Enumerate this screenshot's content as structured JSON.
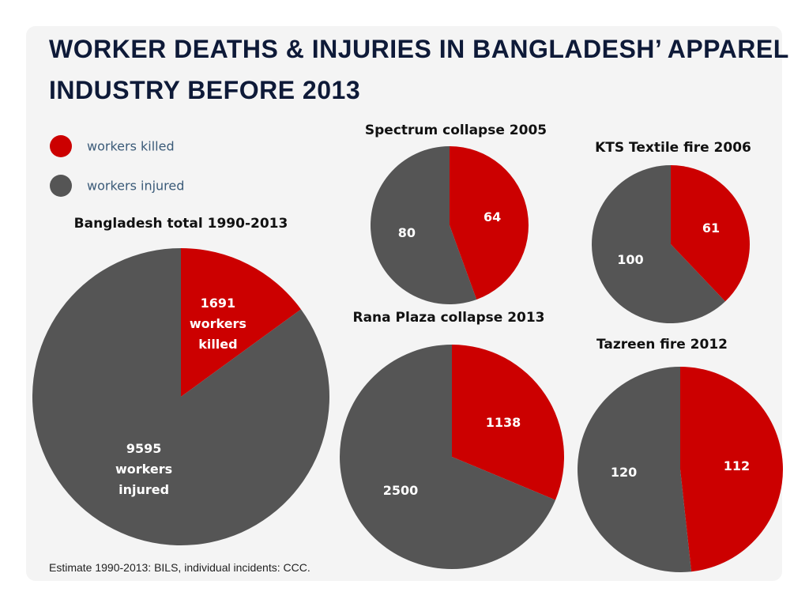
{
  "title": "WORKER DEATHS & INJURIES IN BANGLADESH’ APPAREL INDUSTRY BEFORE 2013",
  "legend": [
    {
      "name": "workers killed",
      "color": "#cc0000"
    },
    {
      "name": "workers injured",
      "color": "#555555"
    }
  ],
  "source": "Estimate 1990-2013: BILS, individual incidents: CCC.",
  "chart_data": [
    {
      "type": "pie",
      "title": "Bangladesh total 1990-2013",
      "values": [
        1691,
        9595
      ],
      "value_labels": [
        "1691 workers killed",
        "9595 workers injured"
      ]
    },
    {
      "type": "pie",
      "title": "Spectrum collapse 2005",
      "values": [
        64,
        80
      ]
    },
    {
      "type": "pie",
      "title": "KTS Textile fire 2006",
      "values": [
        61,
        100
      ]
    },
    {
      "type": "pie",
      "title": "Rana Plaza collapse 2013",
      "values": [
        1138,
        2500
      ]
    },
    {
      "type": "pie",
      "title": "Tazreen fire 2012",
      "values": [
        112,
        120
      ]
    }
  ]
}
